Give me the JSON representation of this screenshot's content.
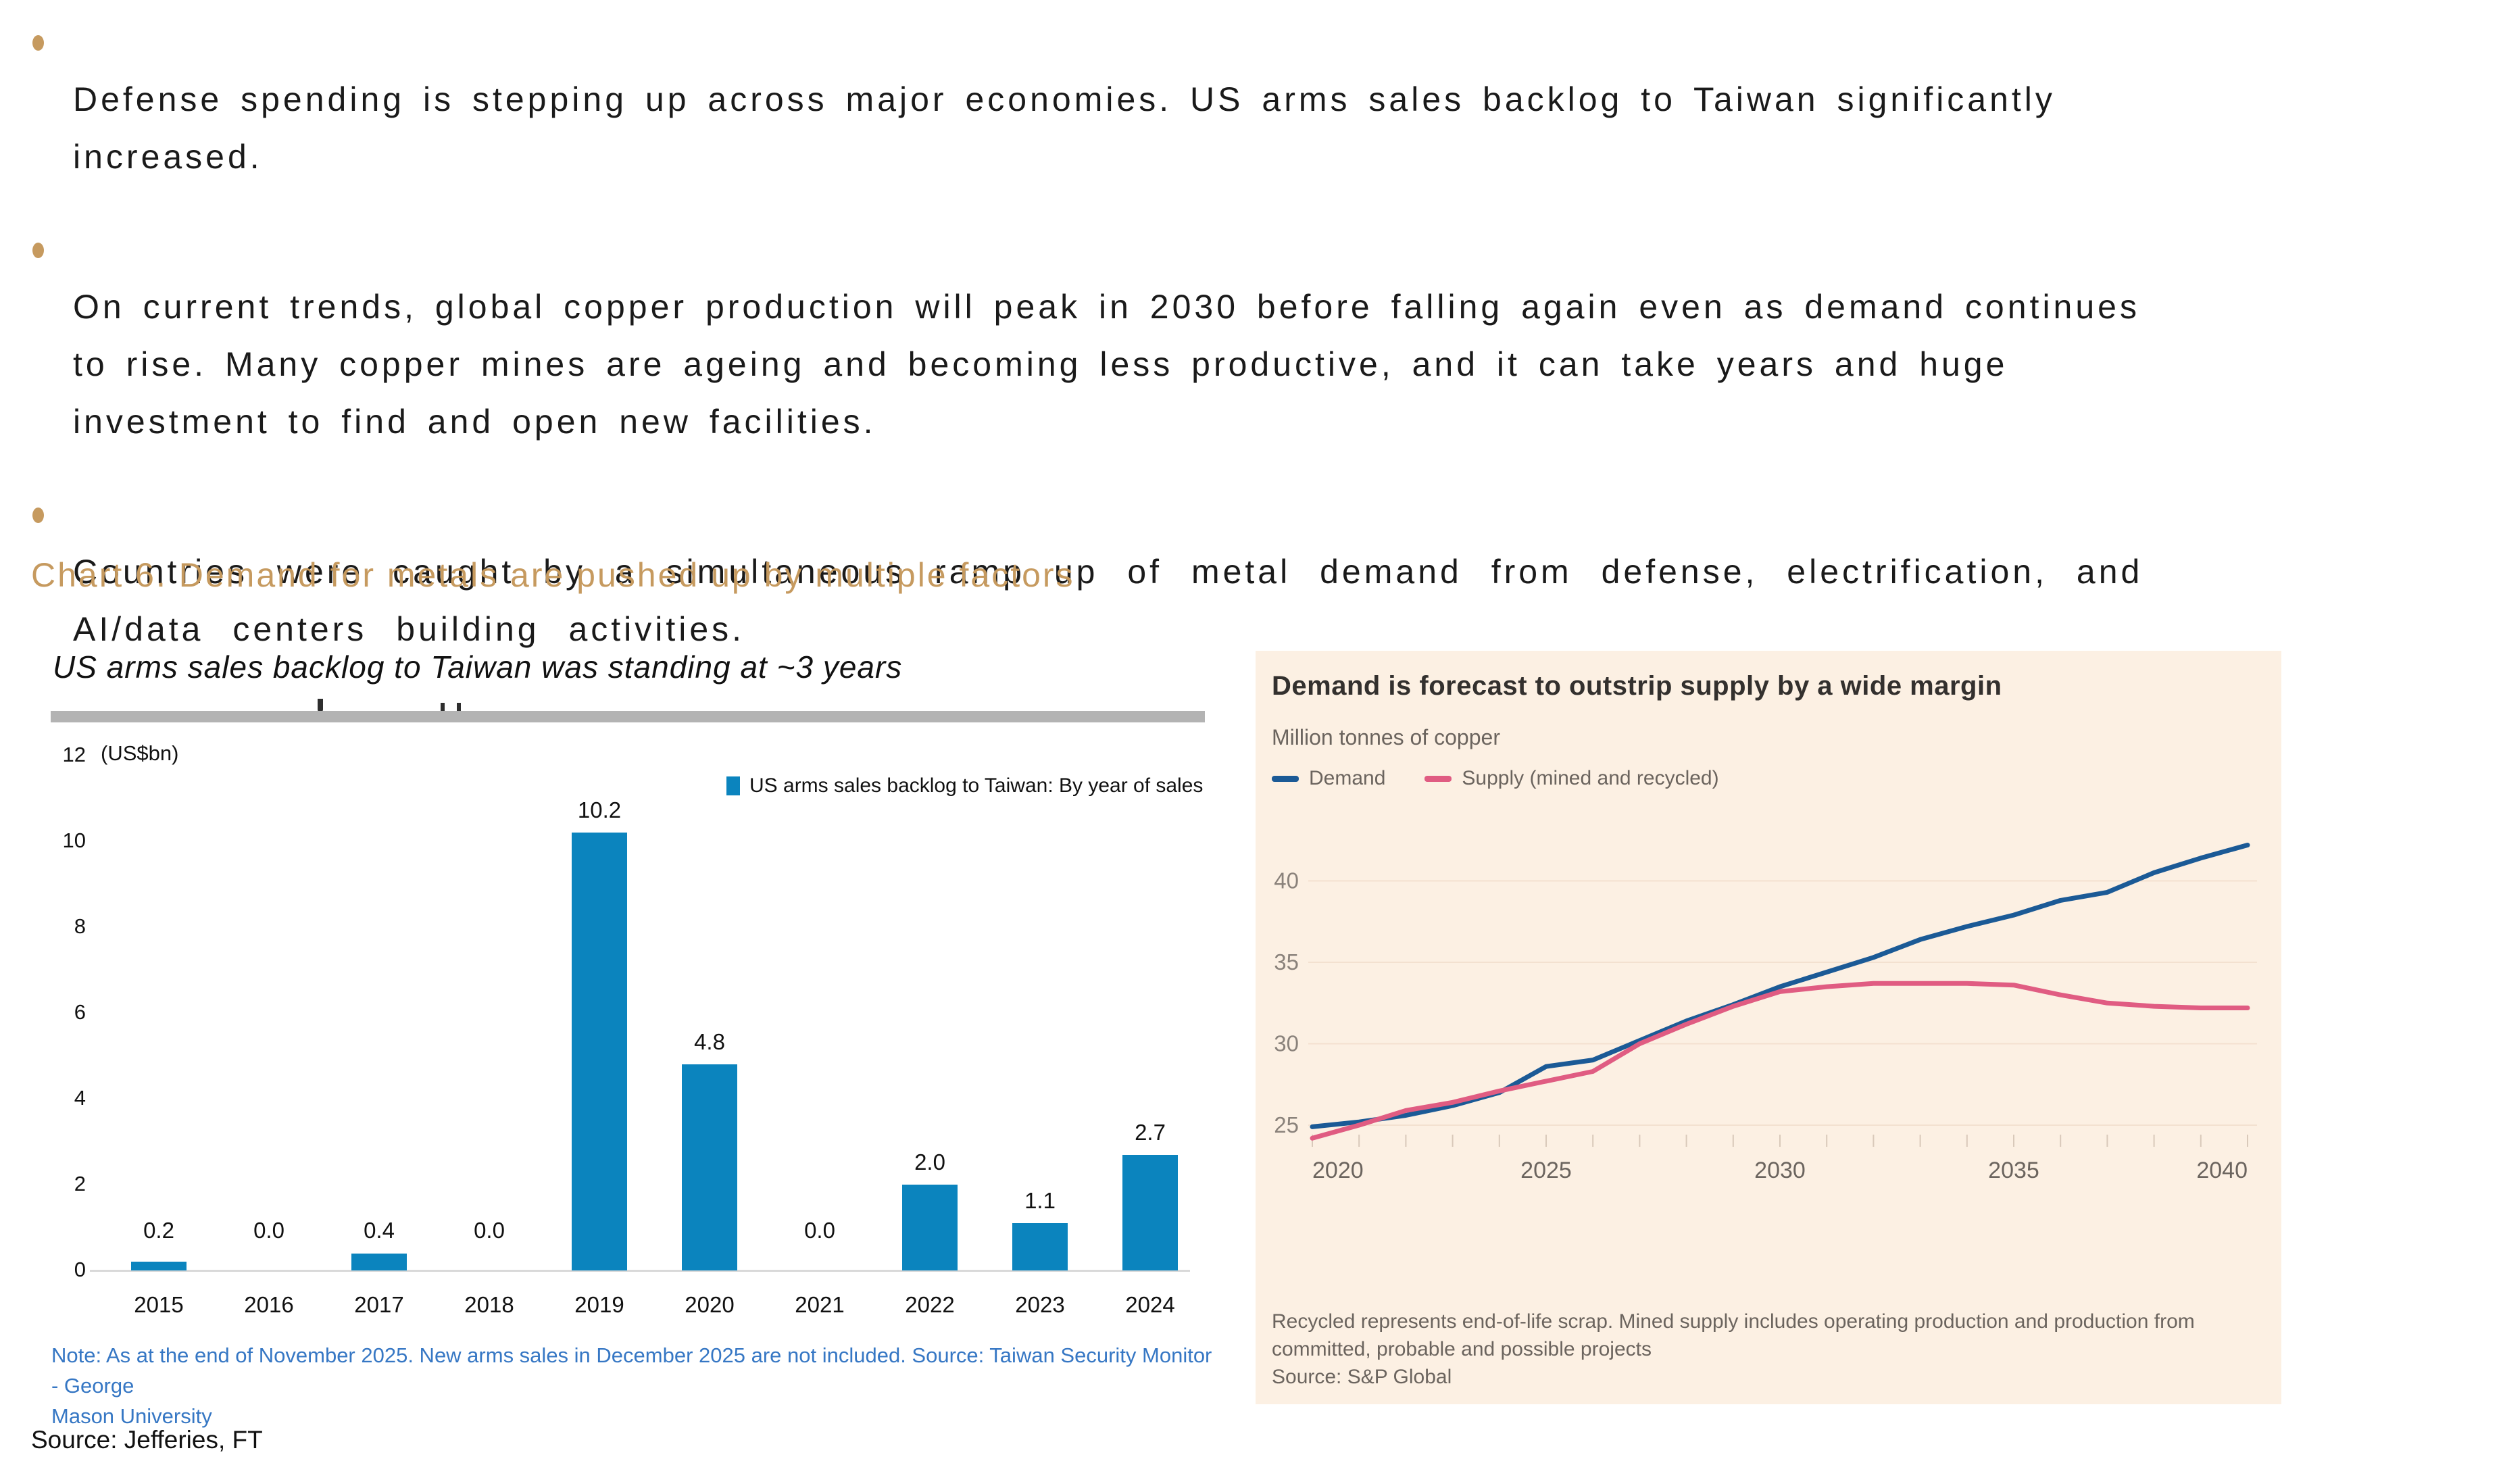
{
  "colors": {
    "accent_gold": "#c69a5f",
    "bar_blue": "#0b84be",
    "note_blue": "#3677c4",
    "panel_bg": "#fcf0e3",
    "demand_navy": "#1b5a96",
    "supply_pink": "#e05c82",
    "grid_line": "#f3e1d0",
    "tick_line": "#d9c9ba",
    "gray_text": "#6b645e"
  },
  "bullets": [
    {
      "text": "Defense spending is stepping up across major economies. US arms sales backlog to Taiwan significantly\nincreased."
    },
    {
      "text": "On current trends, global copper production will peak in 2030 before falling again even as demand continues\nto rise. Many copper mines are ageing and becoming less productive, and it can take years and huge\ninvestment to find and open new facilities."
    },
    {
      "text": "Countries were caught by a simultaneous ramp up of metal demand from defense, electrification, and\nAI/data centers building activities."
    }
  ],
  "section_heading": "Chart 6. Demand for metals are pushed up by multiple factors",
  "page_source": "Source: Jefferies, FT",
  "chart_data": [
    {
      "type": "bar",
      "title": "US arms sales backlog to Taiwan was standing at ~3 years",
      "unit": "(US$bn)",
      "legend": "US arms sales backlog to Taiwan: By year of sales",
      "categories": [
        "2015",
        "2016",
        "2017",
        "2018",
        "2019",
        "2020",
        "2021",
        "2022",
        "2023",
        "2024"
      ],
      "values": [
        0.2,
        0.0,
        0.4,
        0.0,
        10.2,
        4.8,
        0.0,
        2.0,
        1.1,
        2.7
      ],
      "value_labels": [
        "0.2",
        "0.0",
        "0.4",
        "0.0",
        "10.2",
        "4.8",
        "0.0",
        "2.0",
        "1.1",
        "2.7"
      ],
      "ylim": [
        0,
        12
      ],
      "yticks": [
        0,
        2,
        4,
        6,
        8,
        10,
        12
      ],
      "grid": false,
      "bar_color": "#0b84be",
      "note": "Note: As at the end of November 2025. New arms sales in December 2025 are not included. Source: Taiwan Security Monitor - George\nMason University"
    },
    {
      "type": "line",
      "title": "Demand is forecast to outstrip supply by a wide margin",
      "subtitle": "Million tonnes of copper",
      "x": [
        2020,
        2021,
        2022,
        2023,
        2024,
        2025,
        2026,
        2027,
        2028,
        2029,
        2030,
        2031,
        2032,
        2033,
        2034,
        2035,
        2036,
        2037,
        2038,
        2039,
        2040
      ],
      "series": [
        {
          "name": "Demand",
          "color": "#1b5a96",
          "values": [
            24.9,
            25.2,
            25.6,
            26.2,
            27.0,
            28.6,
            29.0,
            30.2,
            31.4,
            32.4,
            33.5,
            34.4,
            35.3,
            36.4,
            37.2,
            37.9,
            38.8,
            39.3,
            40.5,
            41.4,
            42.2
          ]
        },
        {
          "name": "Supply (mined and recycled)",
          "color": "#e05c82",
          "values": [
            24.2,
            25.0,
            25.9,
            26.4,
            27.1,
            27.7,
            28.3,
            30.0,
            31.2,
            32.3,
            33.2,
            33.5,
            33.7,
            33.7,
            33.7,
            33.6,
            33.0,
            32.5,
            32.3,
            32.2,
            32.2
          ]
        }
      ],
      "ylim": [
        23.5,
        42.5
      ],
      "yticks": [
        25,
        30,
        35,
        40
      ],
      "xticks": [
        2020,
        2025,
        2030,
        2035,
        2040
      ],
      "grid": true,
      "legend_position": "top",
      "footnote": "Recycled represents end-of-life scrap. Mined supply includes operating production and production from\ncommitted, probable and possible projects",
      "source": "Source: S&P Global"
    }
  ]
}
